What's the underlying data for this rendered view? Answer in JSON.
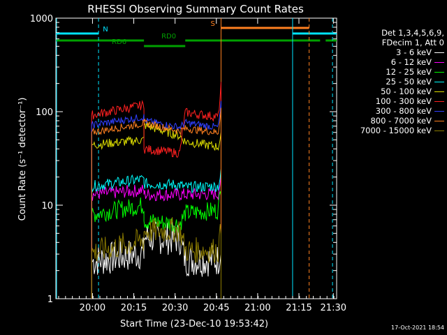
{
  "chart_data": {
    "type": "line",
    "title": "RHESSI Observing Summary Count Rates",
    "xlabel": "Start Time (23-Dec-10 19:53:42)",
    "ylabel": "Count Rate (s⁻¹ detector⁻¹)",
    "yscale": "log",
    "ylim": [
      1,
      1000
    ],
    "xlim_minutes": [
      -7,
      95
    ],
    "x_ticks": [
      "20:00",
      "20:15",
      "20:30",
      "20:45",
      "21:00",
      "21:15",
      "21:30"
    ],
    "y_ticks": [
      "1",
      "10",
      "100",
      "1000"
    ],
    "legend_header": [
      "Det 1,3,4,5,6,9,",
      "FDecim 1, Att 0"
    ],
    "legend_placement": "right",
    "timestamp": "17-Oct-2021 18:54",
    "series": [
      {
        "name": "3 - 6 keV",
        "color": "#ffffff",
        "values": [
          {
            "x": 6,
            "y": 2.5
          },
          {
            "x": 25,
            "y": 3.1
          },
          {
            "x": 25,
            "y": 4.5
          },
          {
            "x": 38,
            "y": 4.4
          },
          {
            "x": 40,
            "y": 2.6
          },
          {
            "x": 52,
            "y": 2.6
          },
          {
            "x": 53,
            "y": 3.5
          }
        ]
      },
      {
        "name": "6 - 12 keV",
        "color": "#ff00ff",
        "values": [
          {
            "x": 6,
            "y": 13
          },
          {
            "x": 25,
            "y": 14.5
          },
          {
            "x": 25,
            "y": 13
          },
          {
            "x": 38,
            "y": 13
          },
          {
            "x": 40,
            "y": 13
          },
          {
            "x": 52,
            "y": 13.2
          },
          {
            "x": 53,
            "y": 20
          }
        ]
      },
      {
        "name": "12 - 25 keV",
        "color": "#00ff00",
        "values": [
          {
            "x": 6,
            "y": 8
          },
          {
            "x": 25,
            "y": 10
          },
          {
            "x": 25,
            "y": 6.8
          },
          {
            "x": 38,
            "y": 6.3
          },
          {
            "x": 40,
            "y": 8.2
          },
          {
            "x": 52,
            "y": 8.8
          },
          {
            "x": 53,
            "y": 16
          }
        ]
      },
      {
        "name": "25 - 50 keV",
        "color": "#00ffff",
        "values": [
          {
            "x": 6,
            "y": 16
          },
          {
            "x": 25,
            "y": 19
          },
          {
            "x": 25,
            "y": 17
          },
          {
            "x": 38,
            "y": 16.5
          },
          {
            "x": 40,
            "y": 15.5
          },
          {
            "x": 52,
            "y": 16
          },
          {
            "x": 53,
            "y": 22
          }
        ]
      },
      {
        "name": "50 - 100 keV",
        "color": "#e0e000",
        "values": [
          {
            "x": 6,
            "y": 44
          },
          {
            "x": 25,
            "y": 50
          },
          {
            "x": 25,
            "y": 72
          },
          {
            "x": 38,
            "y": 55
          },
          {
            "x": 40,
            "y": 48
          },
          {
            "x": 52,
            "y": 42
          },
          {
            "x": 53,
            "y": 55
          }
        ]
      },
      {
        "name": "100 - 300 keV",
        "color": "#ff2020",
        "values": [
          {
            "x": 6,
            "y": 92
          },
          {
            "x": 25,
            "y": 118
          },
          {
            "x": 25,
            "y": 40
          },
          {
            "x": 38,
            "y": 36
          },
          {
            "x": 40,
            "y": 98
          },
          {
            "x": 52,
            "y": 88
          },
          {
            "x": 53,
            "y": 190
          }
        ]
      },
      {
        "name": "300 - 800 keV",
        "color": "#3040ff",
        "values": [
          {
            "x": 6,
            "y": 72
          },
          {
            "x": 25,
            "y": 88
          },
          {
            "x": 25,
            "y": 80
          },
          {
            "x": 38,
            "y": 68
          },
          {
            "x": 40,
            "y": 76
          },
          {
            "x": 52,
            "y": 68
          },
          {
            "x": 53,
            "y": 120
          }
        ]
      },
      {
        "name": "800 - 7000 keV",
        "color": "#ff8020",
        "values": [
          {
            "x": 6,
            "y": 60
          },
          {
            "x": 25,
            "y": 75
          },
          {
            "x": 25,
            "y": 76
          },
          {
            "x": 38,
            "y": 62
          },
          {
            "x": 40,
            "y": 66
          },
          {
            "x": 52,
            "y": 60
          },
          {
            "x": 53,
            "y": 110
          }
        ]
      },
      {
        "name": "7000 - 15000 keV",
        "color": "#8a7a00",
        "values": [
          {
            "x": 6,
            "y": 3.1
          },
          {
            "x": 25,
            "y": 4.2
          },
          {
            "x": 25,
            "y": 5.2
          },
          {
            "x": 38,
            "y": 5.5
          },
          {
            "x": 40,
            "y": 3.3
          },
          {
            "x": 52,
            "y": 3.3
          },
          {
            "x": 53,
            "y": 5.5
          }
        ]
      }
    ],
    "flag_bars": [
      {
        "label": "N",
        "color": "#00e5ff",
        "segments": [
          [
            -7,
            8.5
          ],
          [
            79,
            95
          ]
        ]
      },
      {
        "label": "S",
        "color": "#ff8020",
        "segments": [
          [
            53,
            85
          ]
        ]
      },
      {
        "label": "RD0",
        "color": "#00a000",
        "segments": [
          [
            -7,
            25
          ],
          [
            40,
            89
          ],
          [
            91,
            95
          ]
        ]
      },
      {
        "label": "RD6",
        "color": "#00a000",
        "segments": [
          [
            25,
            40
          ]
        ]
      }
    ],
    "vlines": [
      {
        "x": -7,
        "color": "#00e5ff",
        "style": "solid"
      },
      {
        "x": 8.5,
        "color": "#00e5ff",
        "style": "dashed"
      },
      {
        "x": 53,
        "color": "#ff8020",
        "style": "solid"
      },
      {
        "x": 79,
        "color": "#00e5ff",
        "style": "solid"
      },
      {
        "x": 85,
        "color": "#ff8020",
        "style": "dashed"
      },
      {
        "x": 93.5,
        "color": "#00e5ff",
        "style": "dashed"
      }
    ]
  }
}
